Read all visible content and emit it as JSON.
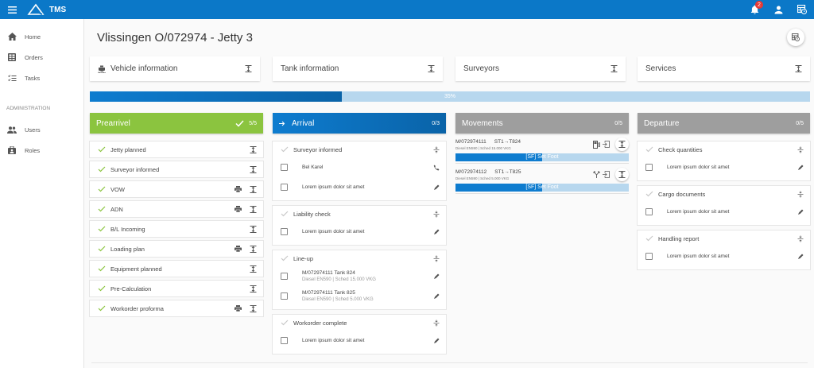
{
  "app": {
    "title": "TMS",
    "notification_count": "2"
  },
  "sidebar": {
    "items": [
      {
        "label": "Home",
        "icon": "home-icon"
      },
      {
        "label": "Orders",
        "icon": "orders-icon"
      },
      {
        "label": "Tasks",
        "icon": "tasks-icon"
      }
    ],
    "section_title": "ADMINISTRATION",
    "admin_items": [
      {
        "label": "Users",
        "icon": "users-icon"
      },
      {
        "label": "Roles",
        "icon": "roles-icon"
      }
    ]
  },
  "page": {
    "title": "Vlissingen O/072974 - Jetty 3"
  },
  "info_cards": [
    {
      "label": "Vehicle information",
      "icon": "ship-icon"
    },
    {
      "label": "Tank information"
    },
    {
      "label": "Surveyors"
    },
    {
      "label": "Services"
    }
  ],
  "progress": {
    "value": 35,
    "label": "35%"
  },
  "columns": {
    "prearrival": {
      "title": "Prearrivel",
      "count": "5/5",
      "color": "#8bc43f",
      "items": [
        {
          "label": "Jetty planned",
          "print": false
        },
        {
          "label": "Surveyor informed",
          "print": false
        },
        {
          "label": "VOW",
          "print": true
        },
        {
          "label": "ADN",
          "print": true
        },
        {
          "label": "B/L Incoming",
          "print": false
        },
        {
          "label": "Loading plan",
          "print": true
        },
        {
          "label": "Equipment planned",
          "print": false
        },
        {
          "label": "Pre-Calculation",
          "print": false
        },
        {
          "label": "Workorder proforma",
          "print": true
        }
      ]
    },
    "arrival": {
      "title": "Arrival",
      "count": "0/3",
      "color": "#0e7ccf",
      "groups": [
        {
          "title": "Surveyor informed",
          "rows": [
            {
              "l1": "Bel Karel",
              "action": "phone"
            },
            {
              "l1": "Lorem ipsum dolor sit amet",
              "action": "edit"
            }
          ]
        },
        {
          "title": "Liability check",
          "rows": [
            {
              "l1": "Lorem ipsum dolor sit amet",
              "action": "edit"
            }
          ]
        },
        {
          "title": "Line-up",
          "rows": [
            {
              "l1": "M/072974111 Tank 824",
              "l2": "Diesel EN590 | Sched 15.000 VKG",
              "action": "edit"
            },
            {
              "l1": "M/072974111 Tank 825",
              "l2": "Diesel EN590 | Sched 5.000 VKG",
              "action": "edit"
            }
          ]
        },
        {
          "title": "Workorder complete",
          "rows": [
            {
              "l1": "Lorem ipsum dolor sit amet",
              "action": "edit"
            }
          ]
        }
      ]
    },
    "movements": {
      "title": "Movements",
      "count": "0/5",
      "color": "#9e9e9e",
      "items": [
        {
          "order": "M/072974111",
          "route": "ST1→T824",
          "detail": "Diesel EN590 | Sched 15.000 VKG",
          "status": "[SF] Set Foot",
          "icon": "pump-icon"
        },
        {
          "order": "M/072974112",
          "route": "ST1→T825",
          "detail": "Diesel EN590 | Sched 5.000 VKG",
          "status": "[SF] Set Foot",
          "icon": "split-icon"
        }
      ]
    },
    "departure": {
      "title": "Departure",
      "count": "0/5",
      "color": "#9e9e9e",
      "groups": [
        {
          "title": "Check quantities",
          "rows": [
            {
              "l1": "Lorem ipsum dolor sit amet",
              "action": "edit"
            }
          ]
        },
        {
          "title": "Cargo documents",
          "rows": [
            {
              "l1": "Lorem ipsum dolor sit amet",
              "action": "edit"
            }
          ]
        },
        {
          "title": "Handling report",
          "rows": [
            {
              "l1": "Lorem ipsum dolor sit amet",
              "action": "edit"
            }
          ]
        }
      ]
    }
  }
}
